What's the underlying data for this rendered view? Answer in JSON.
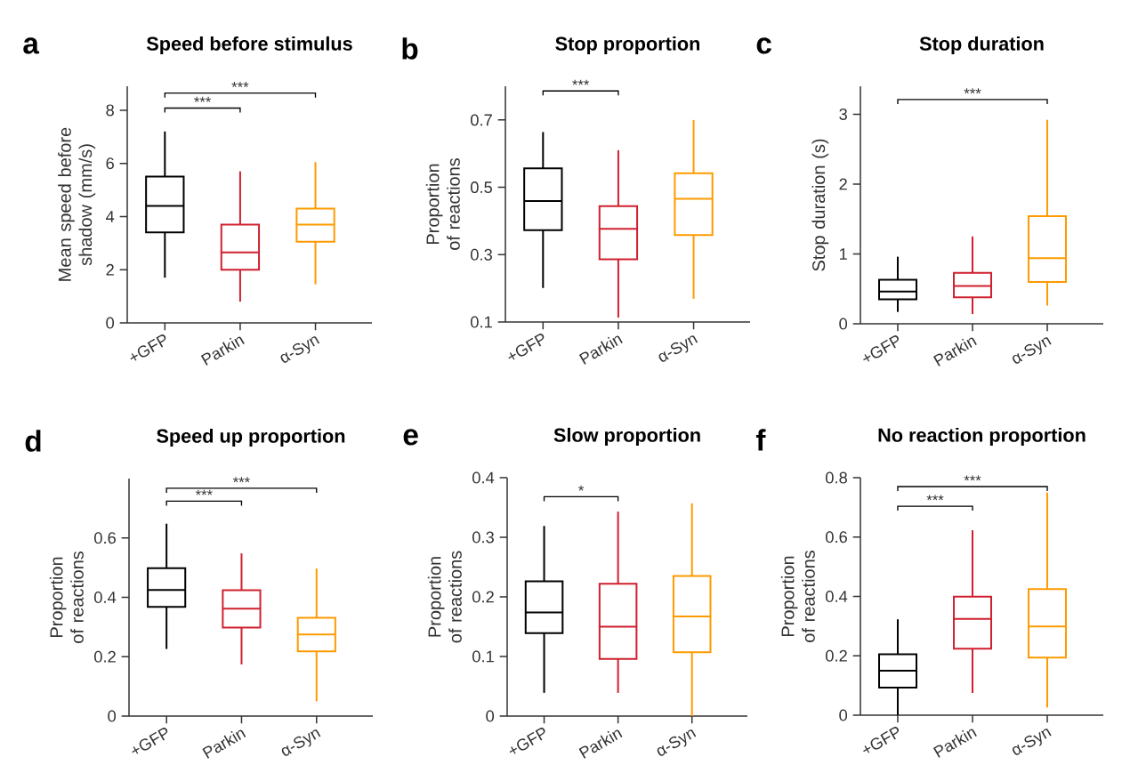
{
  "chart_data": [
    {
      "type": "box",
      "title": "Speed before stimulus",
      "ylabel": "Mean speed before shadow (mm/s)",
      "categories": [
        "+GFP",
        "Parkin",
        "α-Syn"
      ],
      "colors": [
        "#000000",
        "#d0202f",
        "#ff9a00"
      ],
      "boxes": [
        {
          "low": 1.7,
          "q1": 3.4,
          "median": 4.4,
          "q3": 5.5,
          "high": 7.2
        },
        {
          "low": 0.8,
          "q1": 2.0,
          "median": 2.65,
          "q3": 3.7,
          "high": 5.7
        },
        {
          "low": 1.45,
          "q1": 3.05,
          "median": 3.7,
          "q3": 4.3,
          "high": 6.05
        }
      ],
      "ylim": [
        0,
        8.9
      ],
      "yticks": [
        0,
        2,
        4,
        6,
        8
      ],
      "annotations": [
        "a",
        "***",
        "***"
      ]
    },
    {
      "type": "box",
      "title": "Stop proportion",
      "ylabel": "Proportion of reactions",
      "categories": [
        "+GFP",
        "Parkin",
        "α-Syn"
      ],
      "colors": [
        "#000000",
        "#d0202f",
        "#ff9a00"
      ],
      "boxes": [
        {
          "low": 0.201,
          "q1": 0.373,
          "median": 0.459,
          "q3": 0.556,
          "high": 0.664
        },
        {
          "low": 0.113,
          "q1": 0.286,
          "median": 0.377,
          "q3": 0.444,
          "high": 0.61
        },
        {
          "low": 0.169,
          "q1": 0.358,
          "median": 0.466,
          "q3": 0.542,
          "high": 0.7
        }
      ],
      "ylim": [
        0.1,
        0.8
      ],
      "yticks": [
        0.1,
        0.3,
        0.5,
        0.7
      ],
      "annotations": [
        "b",
        "***"
      ]
    },
    {
      "type": "box",
      "title": "Stop duration",
      "ylabel": "Stop duration (s)",
      "categories": [
        "+GFP",
        "Parkin",
        "α-Syn"
      ],
      "colors": [
        "#000000",
        "#d0202f",
        "#ff9a00"
      ],
      "boxes": [
        {
          "low": 0.17,
          "q1": 0.35,
          "median": 0.46,
          "q3": 0.63,
          "high": 0.96
        },
        {
          "low": 0.14,
          "q1": 0.38,
          "median": 0.54,
          "q3": 0.73,
          "high": 1.25
        },
        {
          "low": 0.26,
          "q1": 0.6,
          "median": 0.94,
          "q3": 1.54,
          "high": 2.92
        }
      ],
      "ylim": [
        0,
        3.4
      ],
      "yticks": [
        0,
        1,
        2,
        3
      ],
      "annotations": [
        "c",
        "***"
      ]
    },
    {
      "type": "box",
      "title": "Speed up proportion",
      "ylabel": "Proportion of reactions",
      "categories": [
        "+GFP",
        "Parkin",
        "α-Syn"
      ],
      "colors": [
        "#000000",
        "#d0202f",
        "#ff9a00"
      ],
      "boxes": [
        {
          "low": 0.226,
          "q1": 0.368,
          "median": 0.425,
          "q3": 0.498,
          "high": 0.648
        },
        {
          "low": 0.174,
          "q1": 0.298,
          "median": 0.362,
          "q3": 0.424,
          "high": 0.548
        },
        {
          "low": 0.05,
          "q1": 0.218,
          "median": 0.275,
          "q3": 0.331,
          "high": 0.497
        }
      ],
      "ylim": [
        0,
        0.8
      ],
      "yticks": [
        0,
        0.2,
        0.4,
        0.6
      ],
      "annotations": [
        "d",
        "***",
        "***"
      ]
    },
    {
      "type": "box",
      "title": "Slow proportion",
      "ylabel": "Proportion of reactions",
      "categories": [
        "+GFP",
        "Parkin",
        "α-Syn"
      ],
      "colors": [
        "#000000",
        "#d0202f",
        "#ff9a00"
      ],
      "boxes": [
        {
          "low": 0.039,
          "q1": 0.139,
          "median": 0.174,
          "q3": 0.226,
          "high": 0.319
        },
        {
          "low": 0.039,
          "q1": 0.096,
          "median": 0.15,
          "q3": 0.222,
          "high": 0.343
        },
        {
          "low": 0,
          "q1": 0.107,
          "median": 0.167,
          "q3": 0.235,
          "high": 0.357
        }
      ],
      "ylim": [
        0,
        0.4
      ],
      "yticks": [
        0,
        0.1,
        0.2,
        0.3,
        0.4
      ],
      "annotations": [
        "e",
        "*"
      ]
    },
    {
      "type": "box",
      "title": "No reaction proportion",
      "ylabel": "Proportion of reactions",
      "categories": [
        "+GFP",
        "Parkin",
        "α-Syn"
      ],
      "colors": [
        "#000000",
        "#d0202f",
        "#ff9a00"
      ],
      "boxes": [
        {
          "low": 0,
          "q1": 0.093,
          "median": 0.15,
          "q3": 0.205,
          "high": 0.323
        },
        {
          "low": 0.075,
          "q1": 0.224,
          "median": 0.324,
          "q3": 0.399,
          "high": 0.623
        },
        {
          "low": 0.026,
          "q1": 0.194,
          "median": 0.299,
          "q3": 0.425,
          "high": 0.75
        }
      ],
      "ylim": [
        0,
        0.8
      ],
      "yticks": [
        0,
        0.2,
        0.4,
        0.6,
        0.8
      ],
      "annotations": [
        "f",
        "***",
        "***"
      ]
    }
  ]
}
